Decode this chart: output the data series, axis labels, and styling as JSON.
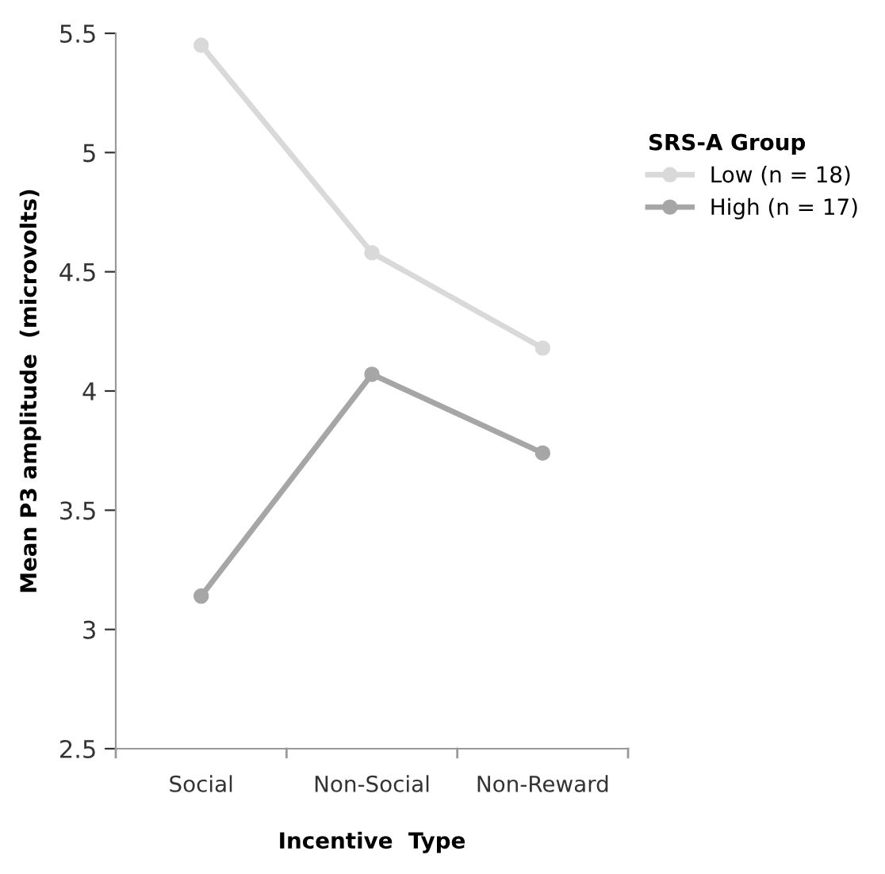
{
  "chart_data": {
    "type": "line",
    "xlabel": "Incentive  Type",
    "ylabel": "Mean P3 amplitude  (microvolts)",
    "legend_title": "SRS-A Group",
    "categories": [
      "Social",
      "Non-Social",
      "Non-Reward"
    ],
    "series": [
      {
        "name": "Low (n = 18)",
        "color": "#d9d9d9",
        "values": [
          5.45,
          4.58,
          4.18
        ]
      },
      {
        "name": "High (n = 17)",
        "color": "#a6a6a6",
        "values": [
          3.14,
          4.07,
          3.74
        ]
      }
    ],
    "ylim": [
      2.5,
      5.5
    ],
    "yticks": [
      2.5,
      3,
      3.5,
      4,
      4.5,
      5,
      5.5
    ],
    "marker": "circle",
    "line_style": "solid",
    "legend": "right",
    "grid": false
  }
}
